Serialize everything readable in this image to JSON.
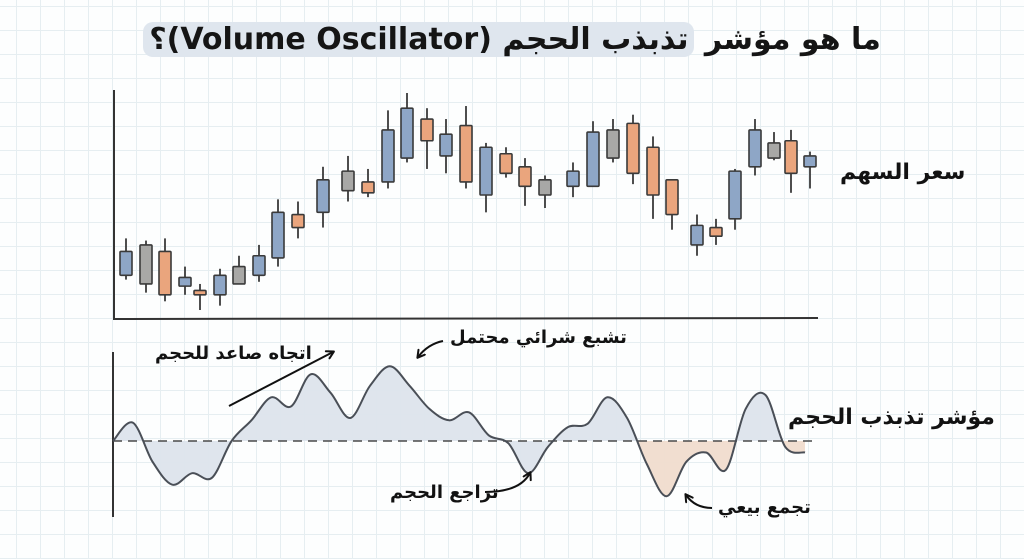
{
  "title": {
    "prefix": "ما هو مؤشر ",
    "highlight": "تذبذب الحجم (Volume Oscillator)؟"
  },
  "labels": {
    "price": "سعر السهم",
    "oscillator": "مؤشر تذبذب الحجم",
    "uptrend": "اتجاه صاعد للحجم",
    "overbought": "تشبع شرائي محتمل",
    "decline": "تراجع الحجم",
    "selling": "تجمع بيعي"
  },
  "colors": {
    "up": "#8ea6c6",
    "down": "#eaa57d",
    "neutral": "#a8a8a6",
    "positive_fill": "#dde4ec",
    "negative_fill": "#f0dccd",
    "line": "#4a4f57"
  },
  "chart_data": [
    {
      "type": "candlestick",
      "title": "سعر السهم",
      "xlabel": "",
      "ylabel": "",
      "grid": true,
      "note": "Values are pixel-derived relative price levels (higher = higher price), 0-100 scale",
      "candles": [
        {
          "open": 16,
          "close": 27,
          "high": 33,
          "low": 14,
          "color": "blue"
        },
        {
          "open": 12,
          "close": 30,
          "high": 32,
          "low": 8,
          "color": "gray"
        },
        {
          "open": 27,
          "close": 7,
          "high": 33,
          "low": 4,
          "color": "orange"
        },
        {
          "open": 11,
          "close": 15,
          "high": 20,
          "low": 7,
          "color": "blue"
        },
        {
          "open": 9,
          "close": 7,
          "high": 12,
          "low": 0,
          "color": "orange"
        },
        {
          "open": 7,
          "close": 16,
          "high": 19,
          "low": 2,
          "color": "blue"
        },
        {
          "open": 12,
          "close": 20,
          "high": 25,
          "low": 12,
          "color": "gray"
        },
        {
          "open": 16,
          "close": 25,
          "high": 30,
          "low": 13,
          "color": "blue"
        },
        {
          "open": 24,
          "close": 45,
          "high": 51,
          "low": 20,
          "color": "blue"
        },
        {
          "open": 44,
          "close": 38,
          "high": 50,
          "low": 33,
          "color": "orange"
        },
        {
          "open": 45,
          "close": 60,
          "high": 66,
          "low": 38,
          "color": "blue"
        },
        {
          "open": 55,
          "close": 64,
          "high": 71,
          "low": 50,
          "color": "gray"
        },
        {
          "open": 59,
          "close": 54,
          "high": 65,
          "low": 52,
          "color": "orange"
        },
        {
          "open": 59,
          "close": 83,
          "high": 92,
          "low": 56,
          "color": "blue"
        },
        {
          "open": 70,
          "close": 93,
          "high": 100,
          "low": 68,
          "color": "blue"
        },
        {
          "open": 88,
          "close": 78,
          "high": 93,
          "low": 65,
          "color": "orange"
        },
        {
          "open": 71,
          "close": 81,
          "high": 88,
          "low": 63,
          "color": "blue"
        },
        {
          "open": 85,
          "close": 59,
          "high": 94,
          "low": 56,
          "color": "orange"
        },
        {
          "open": 53,
          "close": 75,
          "high": 77,
          "low": 45,
          "color": "blue"
        },
        {
          "open": 72,
          "close": 63,
          "high": 75,
          "low": 61,
          "color": "orange"
        },
        {
          "open": 66,
          "close": 57,
          "high": 70,
          "low": 48,
          "color": "orange"
        },
        {
          "open": 53,
          "close": 60,
          "high": 62,
          "low": 47,
          "color": "gray"
        },
        {
          "open": 57,
          "close": 64,
          "high": 68,
          "low": 52,
          "color": "blue"
        },
        {
          "open": 57,
          "close": 82,
          "high": 87,
          "low": 57,
          "color": "blue"
        },
        {
          "open": 70,
          "close": 83,
          "high": 88,
          "low": 68,
          "color": "gray"
        },
        {
          "open": 86,
          "close": 63,
          "high": 90,
          "low": 58,
          "color": "orange"
        },
        {
          "open": 75,
          "close": 53,
          "high": 80,
          "low": 42,
          "color": "orange"
        },
        {
          "open": 60,
          "close": 44,
          "high": 60,
          "low": 37,
          "color": "orange"
        },
        {
          "open": 30,
          "close": 39,
          "high": 44,
          "low": 25,
          "color": "blue"
        },
        {
          "open": 38,
          "close": 34,
          "high": 42,
          "low": 30,
          "color": "orange"
        },
        {
          "open": 42,
          "close": 64,
          "high": 65,
          "low": 37,
          "color": "blue"
        },
        {
          "open": 66,
          "close": 83,
          "high": 88,
          "low": 62,
          "color": "blue"
        },
        {
          "open": 70,
          "close": 77,
          "high": 82,
          "low": 69,
          "color": "gray"
        },
        {
          "open": 78,
          "close": 63,
          "high": 83,
          "low": 54,
          "color": "orange"
        },
        {
          "open": 66,
          "close": 71,
          "high": 73,
          "low": 56,
          "color": "blue"
        }
      ]
    },
    {
      "type": "area",
      "title": "مؤشر تذبذب الحجم",
      "xlabel": "",
      "ylabel": "",
      "baseline": 0,
      "note": "Relative oscillator values read from curve; zero line dashed",
      "x": [
        0,
        1,
        2,
        3,
        4,
        5,
        6,
        7,
        8,
        9,
        10,
        11,
        12,
        13,
        14,
        15,
        16,
        17,
        18,
        19,
        20,
        21,
        22,
        23,
        24,
        25,
        26,
        27,
        28,
        29,
        30,
        31,
        32,
        33,
        34,
        35
      ],
      "values": [
        0,
        16,
        -18,
        -38,
        -28,
        -32,
        0,
        18,
        38,
        30,
        58,
        42,
        20,
        48,
        65,
        48,
        28,
        18,
        25,
        5,
        -2,
        -28,
        -5,
        12,
        15,
        38,
        20,
        -20,
        -48,
        -18,
        -10,
        -25,
        28,
        40,
        -5,
        -10
      ],
      "annotations": [
        {
          "text": "اتجاه صاعد للحجم",
          "type": "uptrend arrow"
        },
        {
          "text": "تشبع شرائي محتمل",
          "type": "peak"
        },
        {
          "text": "تراجع الحجم",
          "type": "dip"
        },
        {
          "text": "تجمع بيعي",
          "type": "trough"
        }
      ]
    }
  ]
}
